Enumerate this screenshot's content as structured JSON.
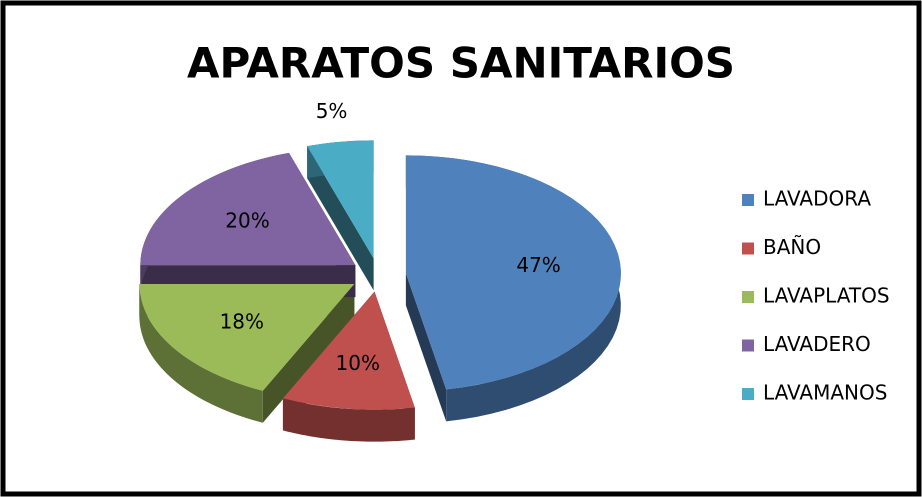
{
  "chart_data": {
    "type": "pie",
    "title": "APARATOS SANITARIOS",
    "categories": [
      "LAVADORA",
      "BAÑO",
      "LAVAPLATOS",
      "LAVADERO",
      "LAVAMANOS"
    ],
    "values": [
      47,
      10,
      18,
      20,
      5
    ],
    "value_labels": [
      "47%",
      "10%",
      "18%",
      "20%",
      "5%"
    ],
    "colors": [
      "#4f81bd",
      "#c0504d",
      "#9bbb59",
      "#8064a2",
      "#4bacc6"
    ],
    "legend": "right"
  }
}
